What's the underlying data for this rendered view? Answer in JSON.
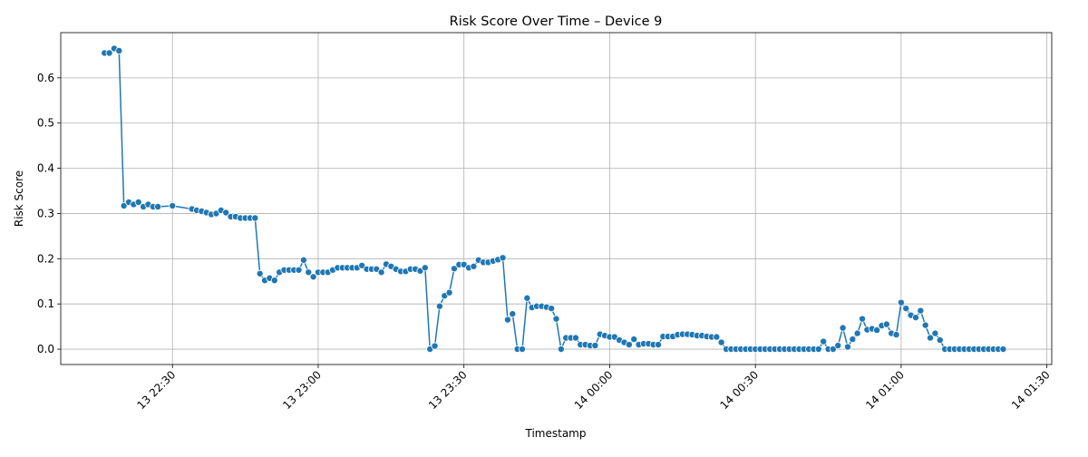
{
  "chart_data": {
    "type": "line",
    "title": "Risk Score Over Time – Device 9",
    "x_label": "Timestamp",
    "y_label": "Risk Score",
    "x": [
      "13 22:16",
      "13 22:17",
      "13 22:18",
      "13 22:19",
      "13 22:20",
      "13 22:21",
      "13 22:22",
      "13 22:23",
      "13 22:24",
      "13 22:25",
      "13 22:26",
      "13 22:27",
      "13 22:30",
      "13 22:34",
      "13 22:35",
      "13 22:36",
      "13 22:37",
      "13 22:38",
      "13 22:39",
      "13 22:40",
      "13 22:41",
      "13 22:42",
      "13 22:43",
      "13 22:44",
      "13 22:45",
      "13 22:46",
      "13 22:47",
      "13 22:48",
      "13 22:49",
      "13 22:50",
      "13 22:51",
      "13 22:52",
      "13 22:53",
      "13 22:54",
      "13 22:55",
      "13 22:56",
      "13 22:57",
      "13 22:58",
      "13 22:59",
      "13 23:00",
      "13 23:01",
      "13 23:02",
      "13 23:03",
      "13 23:04",
      "13 23:05",
      "13 23:06",
      "13 23:07",
      "13 23:08",
      "13 23:09",
      "13 23:10",
      "13 23:11",
      "13 23:12",
      "13 23:13",
      "13 23:14",
      "13 23:15",
      "13 23:16",
      "13 23:17",
      "13 23:18",
      "13 23:19",
      "13 23:20",
      "13 23:21",
      "13 23:22",
      "13 23:23",
      "13 23:24",
      "13 23:25",
      "13 23:26",
      "13 23:27",
      "13 23:28",
      "13 23:29",
      "13 23:30",
      "13 23:31",
      "13 23:32",
      "13 23:33",
      "13 23:34",
      "13 23:35",
      "13 23:36",
      "13 23:37",
      "13 23:38",
      "13 23:39",
      "13 23:40",
      "13 23:41",
      "13 23:42",
      "13 23:43",
      "13 23:44",
      "13 23:45",
      "13 23:46",
      "13 23:47",
      "13 23:48",
      "13 23:49",
      "13 23:50",
      "13 23:51",
      "13 23:52",
      "13 23:53",
      "13 23:54",
      "13 23:55",
      "13 23:56",
      "13 23:57",
      "13 23:58",
      "13 23:59",
      "14 00:00",
      "14 00:01",
      "14 00:02",
      "14 00:03",
      "14 00:04",
      "14 00:05",
      "14 00:06",
      "14 00:07",
      "14 00:08",
      "14 00:09",
      "14 00:10",
      "14 00:11",
      "14 00:12",
      "14 00:13",
      "14 00:14",
      "14 00:15",
      "14 00:16",
      "14 00:17",
      "14 00:18",
      "14 00:19",
      "14 00:20",
      "14 00:21",
      "14 00:22",
      "14 00:23",
      "14 00:24",
      "14 00:25",
      "14 00:26",
      "14 00:27",
      "14 00:28",
      "14 00:29",
      "14 00:30",
      "14 00:31",
      "14 00:32",
      "14 00:33",
      "14 00:34",
      "14 00:35",
      "14 00:36",
      "14 00:37",
      "14 00:38",
      "14 00:39",
      "14 00:40",
      "14 00:41",
      "14 00:42",
      "14 00:43",
      "14 00:44",
      "14 00:45",
      "14 00:46",
      "14 00:47",
      "14 00:48",
      "14 00:49",
      "14 00:50",
      "14 00:51",
      "14 00:52",
      "14 00:53",
      "14 00:54",
      "14 00:55",
      "14 00:56",
      "14 00:57",
      "14 00:58",
      "14 00:59",
      "14 01:00",
      "14 01:01",
      "14 01:02",
      "14 01:03",
      "14 01:04",
      "14 01:05",
      "14 01:06",
      "14 01:07",
      "14 01:08",
      "14 01:09",
      "14 01:10",
      "14 01:11",
      "14 01:12",
      "14 01:13",
      "14 01:14",
      "14 01:15",
      "14 01:16",
      "14 01:17",
      "14 01:18",
      "14 01:19",
      "14 01:20",
      "14 01:21"
    ],
    "series": [
      {
        "name": "Risk Score",
        "color": "#1f77b4",
        "values": [
          0.655,
          0.655,
          0.665,
          0.66,
          0.317,
          0.325,
          0.32,
          0.325,
          0.315,
          0.32,
          0.315,
          0.315,
          0.317,
          0.31,
          0.307,
          0.305,
          0.302,
          0.298,
          0.3,
          0.307,
          0.302,
          0.293,
          0.293,
          0.29,
          0.29,
          0.29,
          0.29,
          0.167,
          0.152,
          0.157,
          0.152,
          0.17,
          0.175,
          0.175,
          0.175,
          0.175,
          0.197,
          0.17,
          0.16,
          0.17,
          0.17,
          0.17,
          0.175,
          0.18,
          0.18,
          0.18,
          0.18,
          0.18,
          0.185,
          0.177,
          0.177,
          0.177,
          0.17,
          0.188,
          0.183,
          0.177,
          0.172,
          0.172,
          0.177,
          0.177,
          0.173,
          0.18,
          0,
          0.007,
          0.095,
          0.118,
          0.125,
          0.178,
          0.187,
          0.187,
          0.18,
          0.183,
          0.197,
          0.192,
          0.192,
          0.195,
          0.198,
          0.202,
          0.065,
          0.078,
          0,
          0,
          0.113,
          0.092,
          0.095,
          0.095,
          0.093,
          0.09,
          0.067,
          0,
          0.025,
          0.025,
          0.025,
          0.01,
          0.01,
          0.008,
          0.008,
          0.033,
          0.03,
          0.027,
          0.027,
          0.02,
          0.015,
          0.01,
          0.022,
          0.01,
          0.012,
          0.012,
          0.01,
          0.01,
          0.028,
          0.028,
          0.028,
          0.032,
          0.033,
          0.033,
          0.032,
          0.03,
          0.03,
          0.028,
          0.027,
          0.027,
          0.015,
          0,
          0,
          0,
          0,
          0,
          0,
          0,
          0,
          0,
          0,
          0,
          0,
          0,
          0,
          0,
          0,
          0,
          0,
          0,
          0,
          0.017,
          0,
          0,
          0.008,
          0.047,
          0.005,
          0.022,
          0.035,
          0.067,
          0.043,
          0.045,
          0.042,
          0.052,
          0.055,
          0.035,
          0.032,
          0.103,
          0.09,
          0.075,
          0.07,
          0.085,
          0.053,
          0.025,
          0.035,
          0.02,
          0,
          0,
          0,
          0,
          0,
          0,
          0,
          0,
          0,
          0,
          0,
          0,
          0
        ]
      }
    ],
    "xlim": [
      "13 22:07",
      "14 01:31"
    ],
    "xticks": [
      "13 22:30",
      "13 23:00",
      "13 23:30",
      "14 00:00",
      "14 00:30",
      "14 01:00",
      "14 01:30"
    ],
    "ylim": [
      -0.034,
      0.7
    ],
    "yticks": [
      {
        "value": 0,
        "label": "0.0"
      },
      0.1,
      0.2,
      0.3,
      0.4,
      0.5,
      0.6
    ],
    "grid": true
  }
}
